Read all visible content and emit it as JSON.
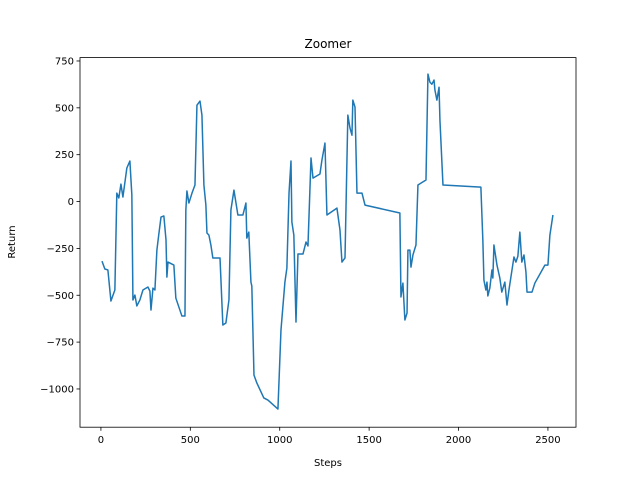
{
  "chart_data": {
    "type": "line",
    "title": "Zoomer",
    "x_label": "Steps",
    "y_label": "Return",
    "xlim": [
      -117,
      2657
    ],
    "ylim": [
      -1204,
      768
    ],
    "xticks": [
      0,
      500,
      1000,
      1500,
      2000,
      2500
    ],
    "yticks": [
      {
        "value": -1000,
        "label": "−1000"
      },
      {
        "value": -750,
        "label": "−750"
      },
      {
        "value": -500,
        "label": "−500"
      },
      {
        "value": -250,
        "label": "−250"
      },
      0,
      250,
      500,
      750
    ],
    "grid": false,
    "series": [
      {
        "color": "#1f77b4",
        "x": [
          6,
          22,
          39,
          56,
          78,
          89,
          100,
          112,
          123,
          145,
          162,
          173,
          179,
          190,
          201,
          218,
          235,
          263,
          274,
          280,
          291,
          302,
          313,
          324,
          336,
          352,
          364,
          369,
          375,
          408,
          419,
          453,
          470,
          475,
          481,
          492,
          509,
          526,
          537,
          554,
          565,
          576,
          587,
          593,
          604,
          615,
          626,
          666,
          682,
          699,
          716,
          727,
          744,
          766,
          794,
          811,
          816,
          827,
          839,
          844,
          856,
          872,
          911,
          934,
          990,
          1007,
          1029,
          1040,
          1052,
          1063,
          1068,
          1079,
          1091,
          1102,
          1130,
          1147,
          1158,
          1175,
          1186,
          1225,
          1236,
          1253,
          1264,
          1320,
          1337,
          1348,
          1365,
          1381,
          1393,
          1404,
          1409,
          1421,
          1432,
          1460,
          1477,
          1672,
          1678,
          1689,
          1700,
          1712,
          1717,
          1728,
          1734,
          1745,
          1762,
          1773,
          1818,
          1829,
          1840,
          1851,
          1863,
          1868,
          1879,
          1891,
          1896,
          1913,
          2125,
          2136,
          2142,
          2153,
          2159,
          2164,
          2175,
          2187,
          2192,
          2198,
          2215,
          2231,
          2242,
          2259,
          2271,
          2282,
          2299,
          2310,
          2321,
          2332,
          2343,
          2354,
          2366,
          2377,
          2383,
          2411,
          2427,
          2483,
          2500,
          2511,
          2528
        ],
        "values": [
          -318,
          -360,
          -365,
          -531,
          -472,
          45,
          19,
          93,
          24,
          179,
          216,
          35,
          -525,
          -499,
          -557,
          -525,
          -472,
          -456,
          -478,
          -579,
          -462,
          -472,
          -259,
          -173,
          -83,
          -77,
          -205,
          -403,
          -323,
          -339,
          -515,
          -611,
          -611,
          -45,
          56,
          -8,
          44,
          88,
          514,
          536,
          461,
          88,
          -19,
          -168,
          -179,
          -232,
          -301,
          -301,
          -659,
          -648,
          -525,
          -45,
          61,
          -72,
          -72,
          -8,
          -195,
          -163,
          -430,
          -451,
          -926,
          -968,
          -1048,
          -1059,
          -1107,
          -686,
          -430,
          -355,
          45,
          216,
          -109,
          -179,
          -643,
          -280,
          -280,
          -216,
          -237,
          232,
          125,
          147,
          221,
          312,
          -72,
          -35,
          -152,
          -323,
          -301,
          461,
          392,
          354,
          541,
          504,
          45,
          45,
          -19,
          -61,
          -509,
          -435,
          -632,
          -595,
          -259,
          -259,
          -350,
          -285,
          -232,
          88,
          115,
          680,
          637,
          626,
          648,
          595,
          541,
          610,
          435,
          88,
          77,
          -205,
          -419,
          -472,
          -430,
          -504,
          -462,
          -365,
          -408,
          -232,
          -339,
          -408,
          -483,
          -430,
          -552,
          -472,
          -365,
          -296,
          -323,
          -291,
          -163,
          -323,
          -285,
          -376,
          -483,
          -483,
          -435,
          -339,
          -339,
          -179,
          -72
        ]
      }
    ]
  }
}
